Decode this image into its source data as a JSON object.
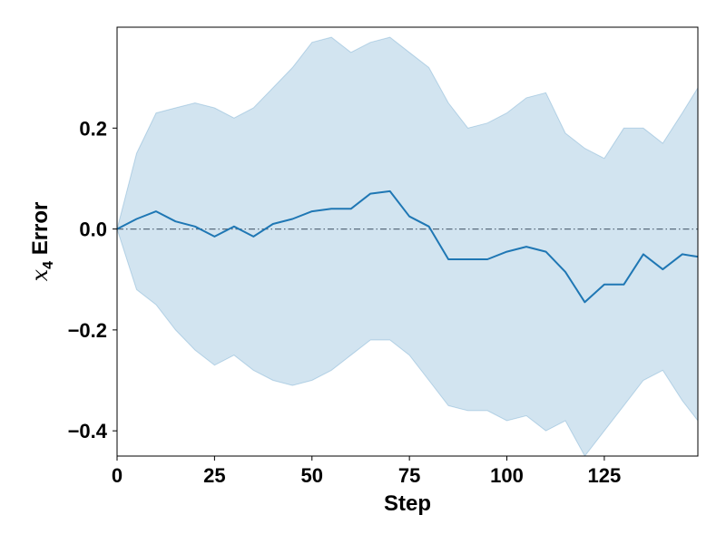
{
  "chart_data": {
    "type": "line",
    "xlabel": "Step",
    "ylabel_symbol": "x",
    "ylabel_subscript": "4",
    "ylabel_rest": " Error",
    "xlim": [
      0,
      149
    ],
    "ylim": [
      -0.45,
      0.4
    ],
    "xticks": [
      0,
      25,
      50,
      75,
      100,
      125
    ],
    "xtick_labels": [
      "0",
      "25",
      "50",
      "75",
      "100",
      "125"
    ],
    "yticks": [
      0.2,
      0.0,
      -0.2,
      -0.4
    ],
    "ytick_labels": [
      "0.2",
      "0.0",
      "−0.2",
      "−0.4"
    ],
    "reference_line": 0.0,
    "colors": {
      "line": "#1f77b4",
      "band": "#1f77b4",
      "band_opacity": 0.2,
      "reference": "#5a6c7d"
    },
    "series": [
      {
        "x": [
          0,
          5,
          10,
          15,
          20,
          25,
          30,
          35,
          40,
          45,
          50,
          55,
          60,
          65,
          70,
          75,
          80,
          85,
          90,
          95,
          100,
          105,
          110,
          115,
          120,
          125,
          130,
          135,
          140,
          145,
          149
        ],
        "mean": [
          0.0,
          0.02,
          0.035,
          0.015,
          0.005,
          -0.015,
          0.005,
          -0.015,
          0.01,
          0.02,
          0.035,
          0.04,
          0.04,
          0.07,
          0.075,
          0.025,
          0.005,
          -0.06,
          -0.06,
          -0.06,
          -0.045,
          -0.035,
          -0.045,
          -0.085,
          -0.145,
          -0.11,
          -0.11,
          -0.05,
          -0.08,
          -0.05,
          -0.055
        ],
        "upper": [
          0.0,
          0.15,
          0.23,
          0.24,
          0.25,
          0.24,
          0.22,
          0.24,
          0.28,
          0.32,
          0.37,
          0.38,
          0.35,
          0.37,
          0.38,
          0.35,
          0.32,
          0.25,
          0.2,
          0.21,
          0.23,
          0.26,
          0.27,
          0.19,
          0.16,
          0.14,
          0.2,
          0.2,
          0.17,
          0.23,
          0.28
        ],
        "lower": [
          0.0,
          -0.12,
          -0.15,
          -0.2,
          -0.24,
          -0.27,
          -0.25,
          -0.28,
          -0.3,
          -0.31,
          -0.3,
          -0.28,
          -0.25,
          -0.22,
          -0.22,
          -0.25,
          -0.3,
          -0.35,
          -0.36,
          -0.36,
          -0.38,
          -0.37,
          -0.4,
          -0.38,
          -0.45,
          -0.4,
          -0.35,
          -0.3,
          -0.28,
          -0.34,
          -0.38
        ]
      }
    ]
  }
}
